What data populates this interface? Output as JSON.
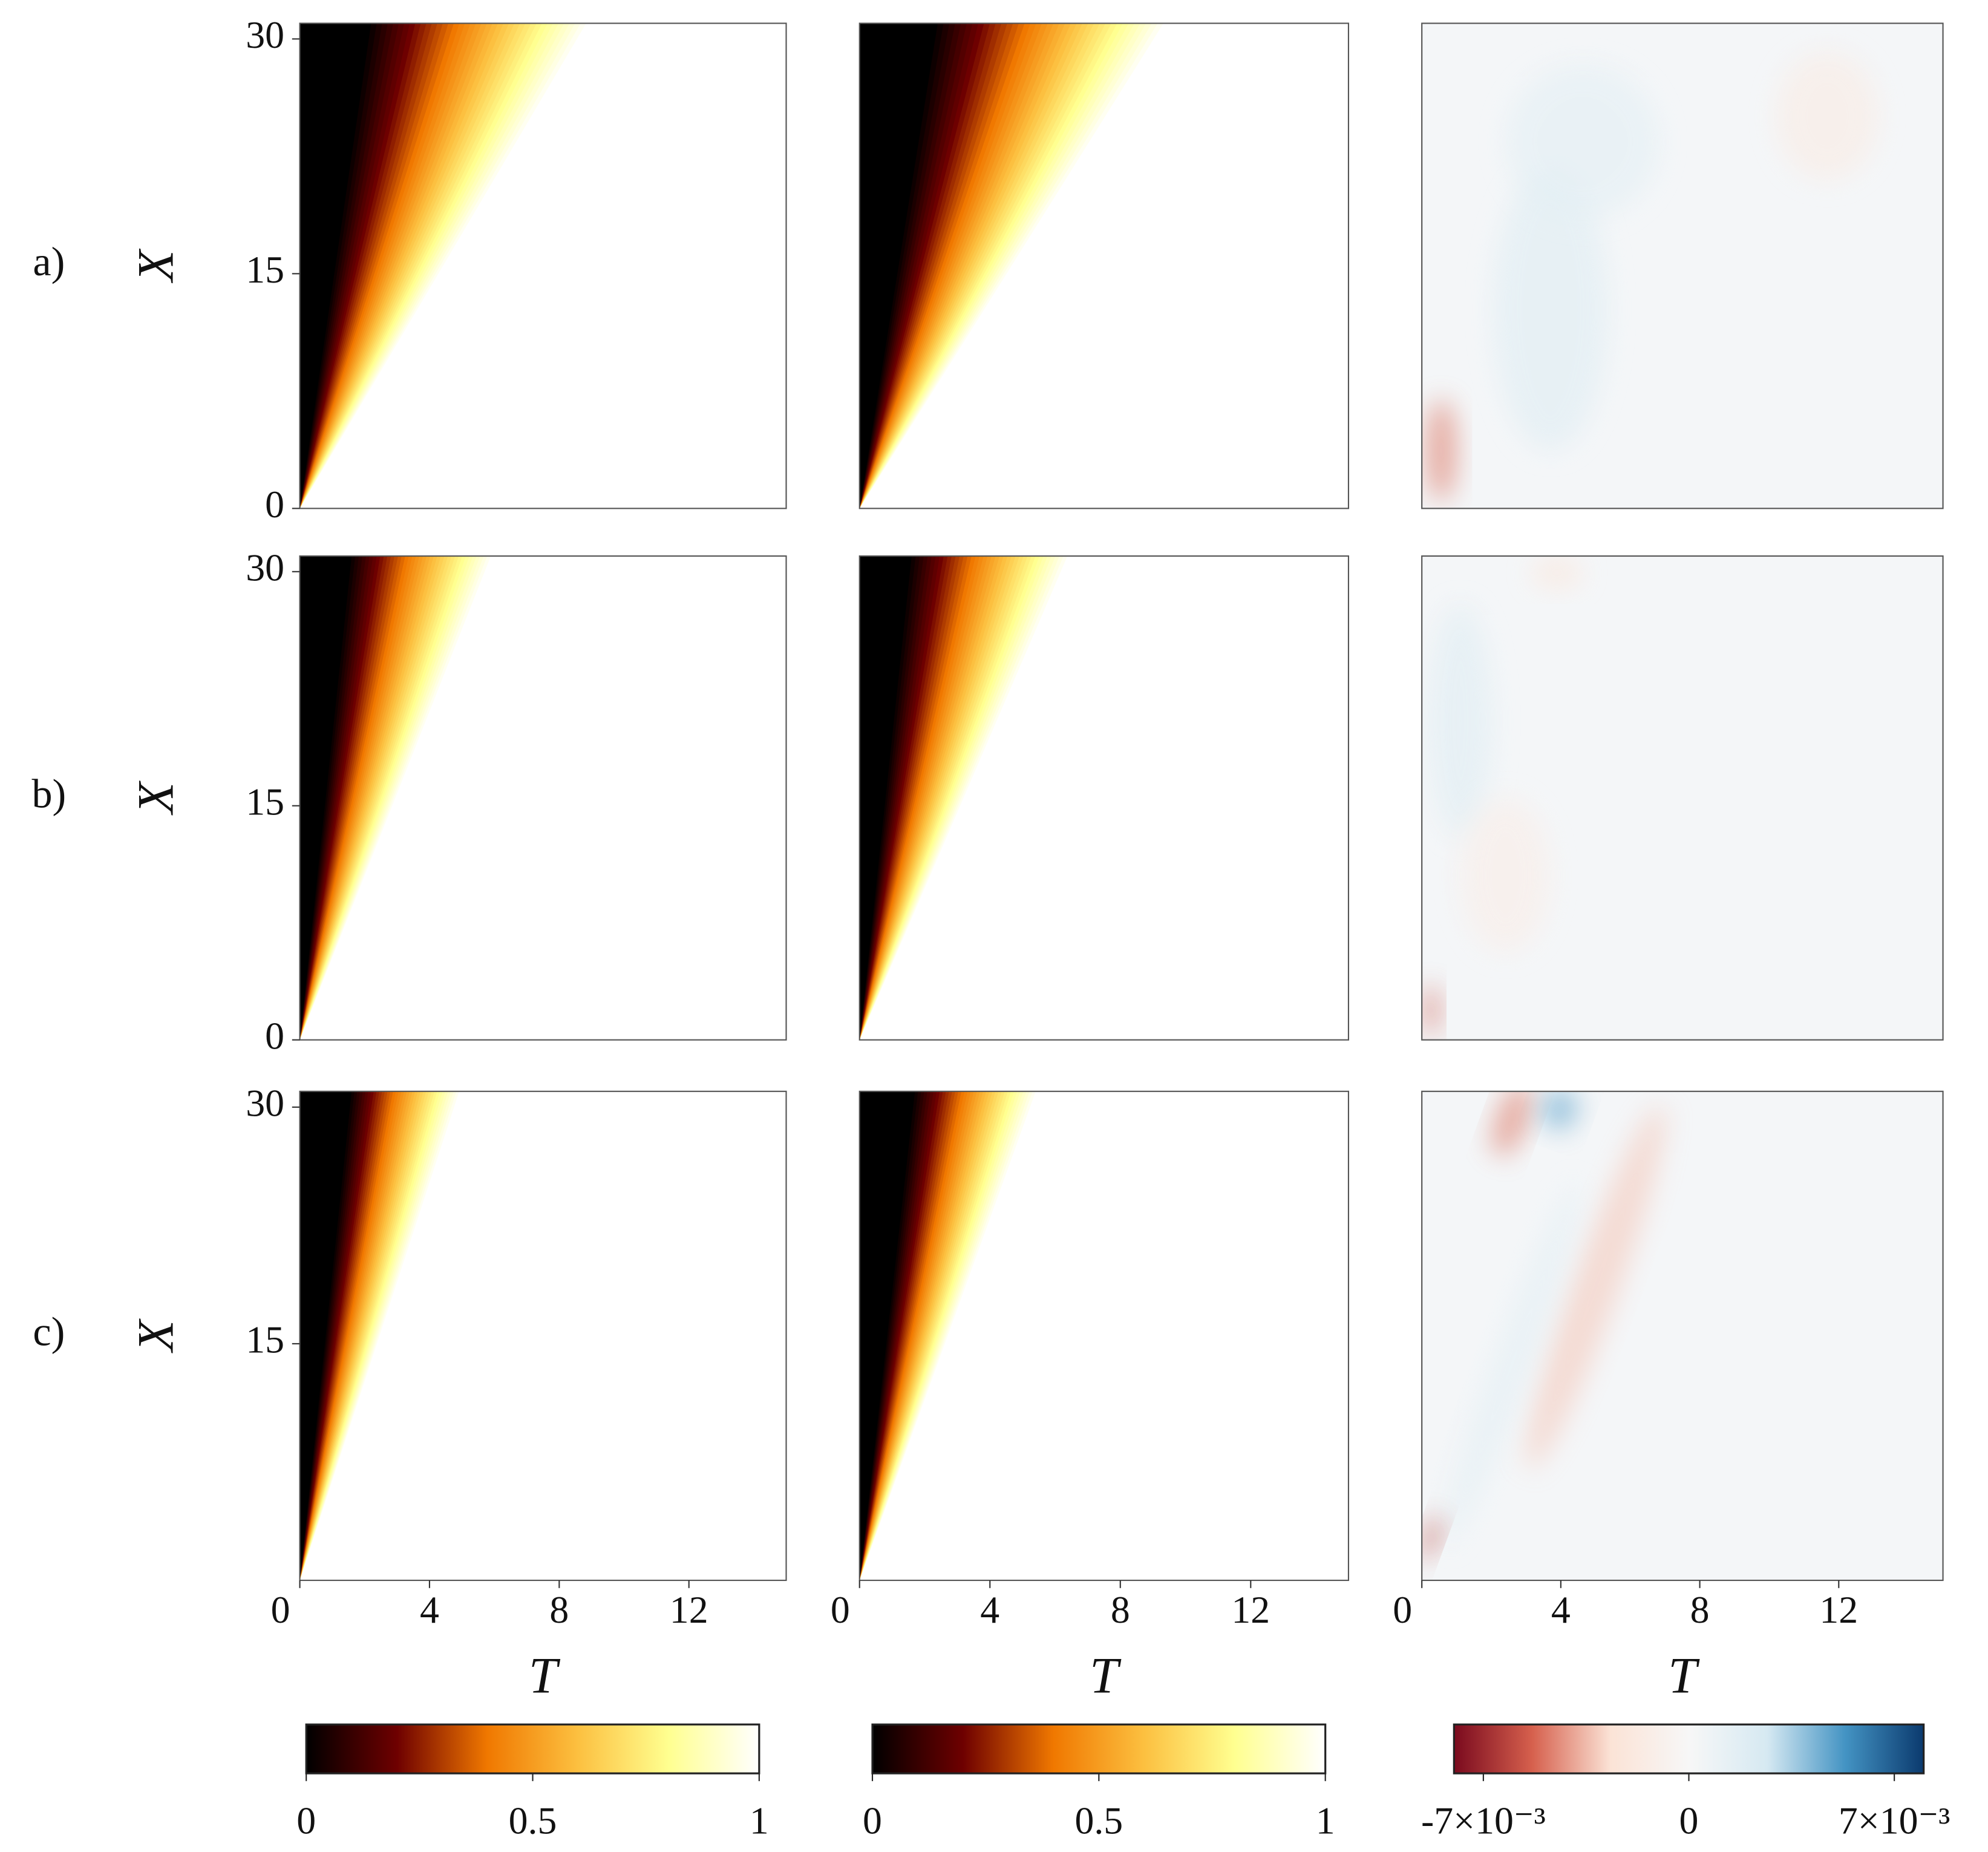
{
  "row_labels": [
    "a)",
    "b)",
    "c)"
  ],
  "chart_data": [
    {
      "type": "heatmap",
      "xlim": [
        0,
        15
      ],
      "ylim": [
        0,
        31
      ],
      "yticks": [
        0,
        15,
        30
      ],
      "ylabel": "X"
    },
    {
      "type": "heatmap",
      "xlim": [
        0,
        15
      ],
      "ylim": [
        0,
        31
      ]
    },
    {
      "type": "heatmap",
      "xlim": [
        0,
        15
      ],
      "ylim": [
        0,
        31
      ]
    },
    {
      "type": "heatmap",
      "xlim": [
        0,
        15
      ],
      "ylim": [
        0,
        31
      ],
      "yticks": [
        0,
        15,
        30
      ],
      "ylabel": "X"
    },
    {
      "type": "heatmap",
      "xlim": [
        0,
        15
      ],
      "ylim": [
        0,
        31
      ]
    },
    {
      "type": "heatmap",
      "xlim": [
        0,
        15
      ],
      "ylim": [
        0,
        31
      ]
    },
    {
      "type": "heatmap",
      "xlim": [
        0,
        15
      ],
      "ylim": [
        0,
        31
      ],
      "yticks": [
        15,
        30
      ],
      "ylabel": "X",
      "xticks": [
        0,
        4,
        8,
        12
      ],
      "xlabel": "T"
    },
    {
      "type": "heatmap",
      "xlim": [
        0,
        15
      ],
      "ylim": [
        0,
        31
      ],
      "xticks": [
        0,
        4,
        8,
        12
      ],
      "xlabel": "T"
    },
    {
      "type": "heatmap",
      "xlim": [
        0,
        15
      ],
      "ylim": [
        0,
        31
      ],
      "xticks": [
        0,
        4,
        8,
        12
      ],
      "xlabel": "T"
    }
  ],
  "colorbars": [
    {
      "clim": [
        0,
        1
      ],
      "ticks": [
        0,
        0.5,
        1
      ],
      "colors": [
        "#000000",
        "#6e0000",
        "#f07800",
        "#fcc040",
        "#ffff90",
        "#ffffff"
      ]
    },
    {
      "clim": [
        0,
        1
      ],
      "ticks": [
        0,
        0.5,
        1
      ],
      "colors": [
        "#000000",
        "#6e0000",
        "#f07800",
        "#fcc040",
        "#ffff90",
        "#ffffff"
      ]
    },
    {
      "clim": [
        -0.008,
        0.008
      ],
      "ticks": [
        {
          "value": -0.007,
          "label": "-7×10⁻³"
        },
        0,
        {
          "value": 0.007,
          "label": "7×10⁻³"
        }
      ],
      "colors": [
        "#7a0a1e",
        "#d6604d",
        "#fbe3d6",
        "#f7f7f7",
        "#d6e9f2",
        "#4393c3",
        "#0b3a6e"
      ]
    }
  ]
}
